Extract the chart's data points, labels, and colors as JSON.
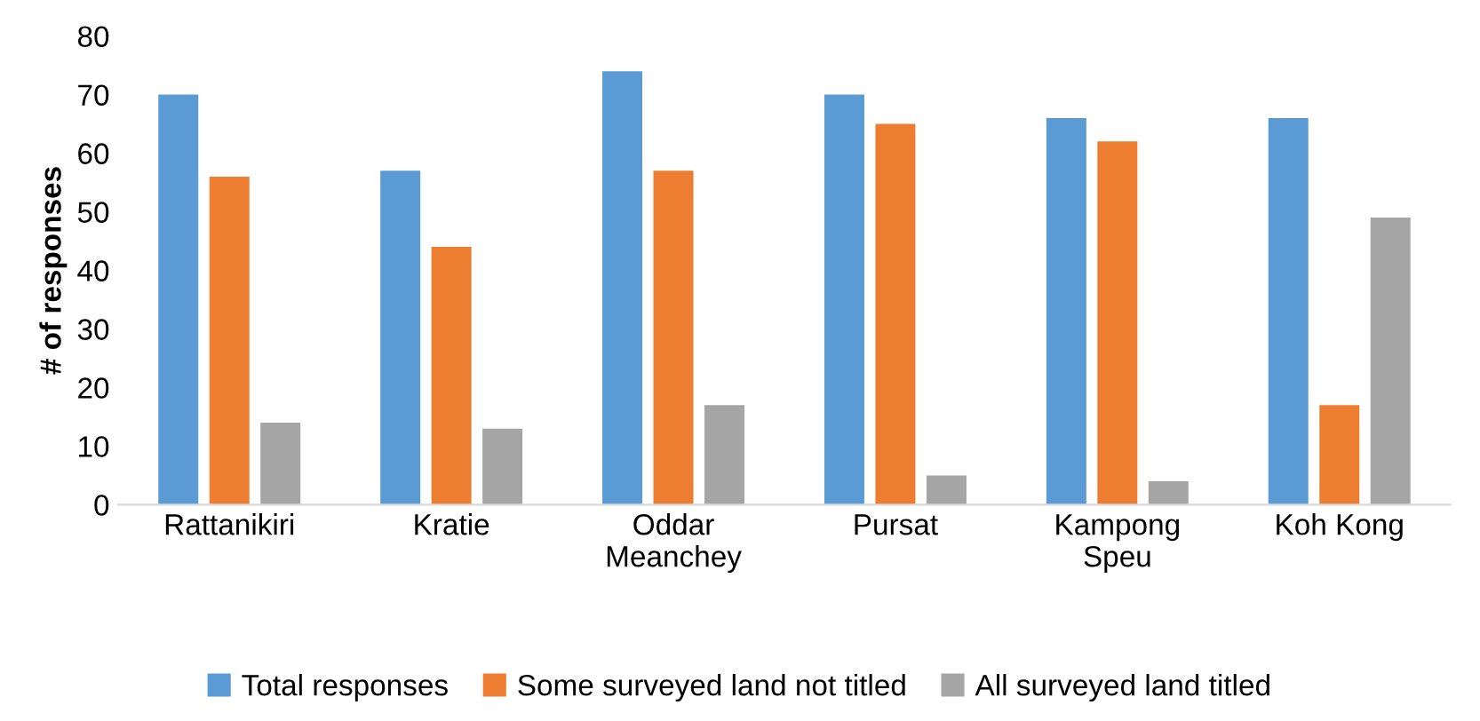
{
  "chart_data": {
    "type": "bar",
    "ylabel": "# of responses",
    "categories": [
      "Rattanikiri",
      "Kratie",
      "Oddar\nMeanchey",
      "Pursat",
      "Kampong\nSpeu",
      "Koh Kong"
    ],
    "series": [
      {
        "name": "Total responses",
        "color": "#5b9bd5",
        "values": [
          70,
          57,
          74,
          70,
          66,
          66
        ]
      },
      {
        "name": "Some surveyed land not titled",
        "color": "#ed7d31",
        "values": [
          56,
          44,
          57,
          65,
          62,
          17
        ]
      },
      {
        "name": "All surveyed land titled",
        "color": "#a5a5a5",
        "values": [
          14,
          13,
          17,
          5,
          4,
          49
        ]
      }
    ],
    "ylim": [
      0,
      80
    ],
    "yticks": [
      0,
      10,
      20,
      30,
      40,
      50,
      60,
      70,
      80
    ],
    "grid": false,
    "legend": "bottom"
  }
}
